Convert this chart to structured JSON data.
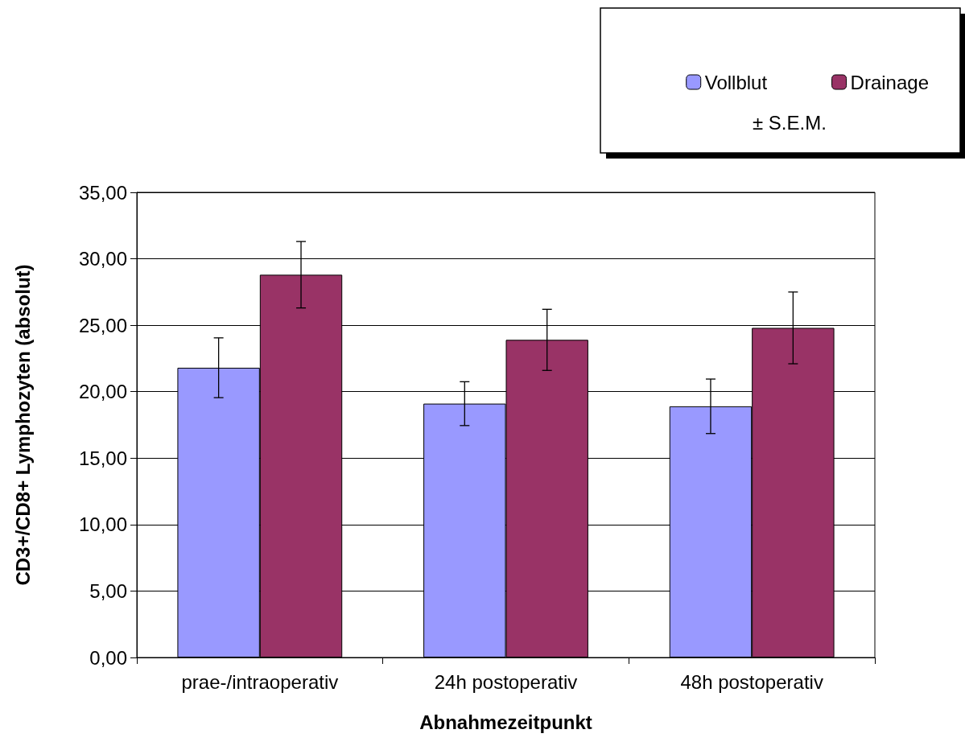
{
  "chart_data": {
    "type": "bar",
    "xlabel": "Abnahmezeitpunkt",
    "ylabel": "CD3+/CD8+ Lymphozyten (absolut)",
    "categories": [
      "prae-/intraoperativ",
      "24h postoperativ",
      "48h postoperativ"
    ],
    "series": [
      {
        "name": "Vollblut",
        "color": "#9999ff",
        "values": [
          21.8,
          19.1,
          18.9
        ],
        "errors": [
          2.25,
          1.65,
          2.05
        ]
      },
      {
        "name": "Drainage",
        "color": "#993366",
        "values": [
          28.8,
          23.9,
          24.8
        ],
        "errors": [
          2.5,
          2.3,
          2.7
        ]
      }
    ],
    "ylim": [
      0,
      35
    ],
    "yticks": [
      {
        "value": 0,
        "label": "0,00"
      },
      {
        "value": 5,
        "label": "5,00"
      },
      {
        "value": 10,
        "label": "10,00"
      },
      {
        "value": 15,
        "label": "15,00"
      },
      {
        "value": 20,
        "label": "20,00"
      },
      {
        "value": 25,
        "label": "25,00"
      },
      {
        "value": 30,
        "label": "30,00"
      },
      {
        "value": 35,
        "label": "35,00"
      }
    ],
    "grid": "y",
    "legend": "top right",
    "annotations": [
      "± S.E.M."
    ]
  }
}
